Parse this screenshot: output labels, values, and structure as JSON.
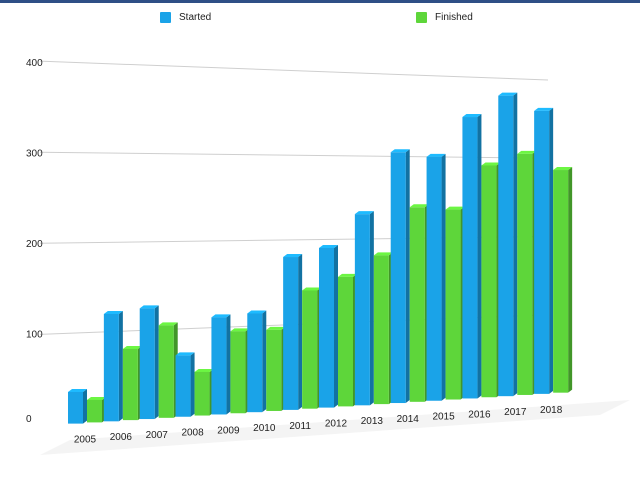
{
  "chart_data": {
    "type": "bar",
    "categories": [
      "2005",
      "2006",
      "2007",
      "2008",
      "2009",
      "2010",
      "2011",
      "2012",
      "2013",
      "2014",
      "2015",
      "2016",
      "2017",
      "2018"
    ],
    "series": [
      {
        "name": "Started",
        "values": [
          35,
          120,
          125,
          70,
          112,
          115,
          180,
          190,
          230,
          305,
          300,
          350,
          378,
          360
        ],
        "color": "#1aa3e8"
      },
      {
        "name": "Finished",
        "values": [
          25,
          80,
          105,
          50,
          95,
          95,
          140,
          155,
          180,
          238,
          235,
          290,
          305,
          285
        ],
        "color": "#5ed63a"
      }
    ],
    "y_ticks": [
      "0",
      "100",
      "200",
      "300",
      "400"
    ],
    "ylim": [
      0,
      400
    ],
    "legend_position": "top"
  }
}
